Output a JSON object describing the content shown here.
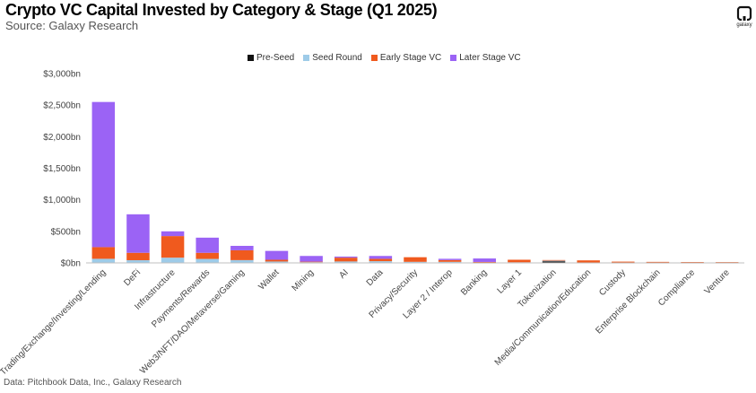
{
  "title": "Crypto VC Capital Invested by Category & Stage (Q1 2025)",
  "subtitle": "Source: Galaxy Research",
  "footer": "Data: Pitchbook Data, Inc., Galaxy Research",
  "logo": {
    "icon": "galaxy-logo-icon",
    "text": "galaxy"
  },
  "colors": {
    "pre_seed": "#111111",
    "seed": "#9ecbe8",
    "early": "#f05a1e",
    "later": "#9b63f5",
    "axis": "#bfbfbf",
    "tick_text": "#444444"
  },
  "chart_data": {
    "type": "bar",
    "stacked": true,
    "title": "Crypto VC Capital Invested by Category & Stage (Q1 2025)",
    "xlabel": "",
    "ylabel": "",
    "ylim": [
      0,
      3000
    ],
    "yticks": [
      0,
      500,
      1000,
      1500,
      2000,
      2500,
      3000
    ],
    "ytick_labels": [
      "$0bn",
      "$500bn",
      "$1,000bn",
      "$1,500bn",
      "$2,000bn",
      "$2,500bn",
      "$3,000bn"
    ],
    "grid": false,
    "legend_position": "top-center",
    "categories": [
      "Trading/Exchange/Investing/Lending",
      "DeFi",
      "Infrastructure",
      "Payments/Rewards",
      "Web3/NFT/DAO/Metaverse/Gaming",
      "Wallet",
      "Mining",
      "AI",
      "Data",
      "Privacy/Security",
      "Layer 2 / Interop",
      "Banking",
      "Layer 1",
      "Tokenization",
      "Media/Communication/Education",
      "Custody",
      "Enterprise Blockchain",
      "Compliance",
      "Venture"
    ],
    "series": [
      {
        "name": "Pre-Seed",
        "values": [
          5,
          3,
          3,
          3,
          4,
          2,
          1,
          3,
          2,
          2,
          2,
          1,
          2,
          25,
          2,
          1,
          1,
          1,
          1
        ]
      },
      {
        "name": "Seed Round",
        "values": [
          60,
          40,
          80,
          60,
          40,
          20,
          10,
          20,
          25,
          15,
          15,
          10,
          8,
          10,
          5,
          4,
          3,
          3,
          2
        ]
      },
      {
        "name": "Early Stage VC",
        "values": [
          185,
          117,
          342,
          97,
          156,
          28,
          9,
          60,
          38,
          73,
          28,
          4,
          40,
          10,
          33,
          15,
          12,
          10,
          10
        ]
      },
      {
        "name": "Later Stage VC",
        "values": [
          2300,
          610,
          75,
          240,
          70,
          140,
          90,
          17,
          45,
          0,
          20,
          55,
          0,
          0,
          0,
          0,
          0,
          0,
          0
        ]
      }
    ]
  }
}
